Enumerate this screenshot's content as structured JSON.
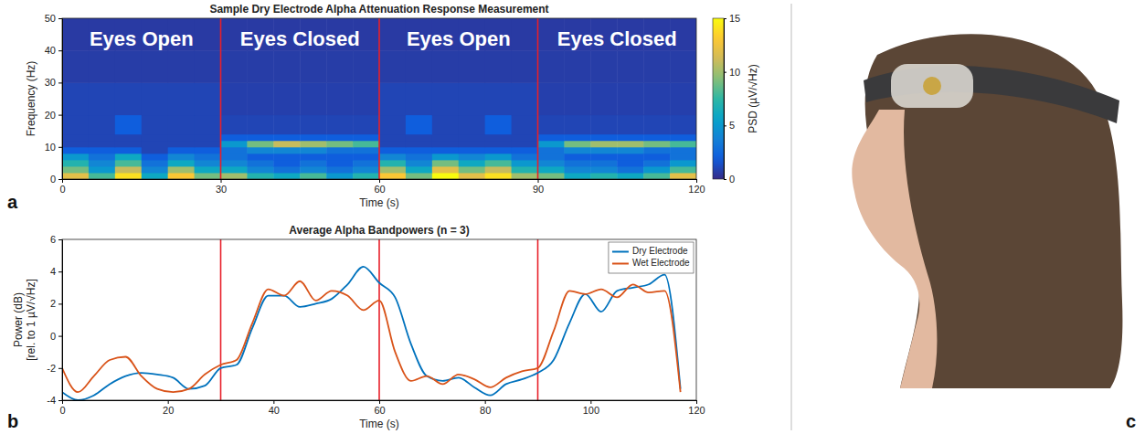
{
  "chart_data": [
    {
      "panel": "a",
      "type": "heatmap",
      "title": "Sample Dry Electrode Alpha Attenuation Response Measurement",
      "xlabel": "Time (s)",
      "ylabel": "Frequency (Hz)",
      "x_bins": [
        0,
        5,
        10,
        15,
        20,
        25,
        30,
        35,
        40,
        45,
        50,
        55,
        60,
        65,
        70,
        75,
        80,
        85,
        90,
        95,
        100,
        105,
        110,
        115,
        120
      ],
      "y_bins": [
        0,
        2,
        4,
        6,
        8,
        10,
        12,
        14,
        20,
        30,
        40,
        50
      ],
      "z": [
        [
          12,
          8,
          14,
          6,
          13,
          9,
          10,
          7,
          6,
          8,
          5,
          7,
          13,
          9,
          15,
          12,
          14,
          10,
          9,
          6,
          7,
          6,
          8,
          12
        ],
        [
          9,
          5,
          11,
          4,
          10,
          6,
          6,
          4,
          3,
          4,
          3,
          4,
          10,
          6,
          12,
          9,
          11,
          7,
          6,
          4,
          4,
          3,
          5,
          8
        ],
        [
          7,
          4,
          8,
          3,
          6,
          4,
          4,
          3,
          2,
          3,
          2,
          3,
          7,
          4,
          9,
          6,
          8,
          5,
          4,
          3,
          3,
          2,
          3,
          5
        ],
        [
          5,
          3,
          6,
          2,
          4,
          3,
          3,
          2,
          2,
          2,
          2,
          2,
          4,
          3,
          5,
          4,
          5,
          3,
          3,
          2,
          2,
          2,
          2,
          3
        ],
        [
          2,
          2,
          2,
          1,
          2,
          2,
          3,
          4,
          4,
          4,
          3,
          3,
          2,
          2,
          2,
          2,
          2,
          2,
          3,
          4,
          4,
          4,
          3,
          3
        ],
        [
          1,
          1,
          1,
          1,
          1,
          1,
          5,
          9,
          11,
          10,
          9,
          8,
          1,
          1,
          1,
          1,
          1,
          1,
          5,
          9,
          10,
          10,
          9,
          8
        ],
        [
          1,
          1,
          1,
          1,
          1,
          1,
          2,
          2,
          2,
          2,
          2,
          2,
          1,
          1,
          1,
          1,
          1,
          1,
          2,
          2,
          2,
          2,
          2,
          2
        ],
        [
          1,
          1,
          2,
          1,
          1,
          1,
          1,
          1,
          1,
          1,
          1,
          1,
          1,
          2,
          1,
          1,
          2,
          1,
          1,
          1,
          1,
          1,
          1,
          1
        ],
        [
          1,
          1,
          1,
          1,
          1,
          1,
          0.8,
          0.8,
          0.8,
          0.8,
          0.8,
          0.8,
          1,
          1,
          1,
          1,
          1,
          1,
          0.8,
          0.8,
          0.8,
          0.8,
          0.8,
          0.8
        ],
        [
          0.7,
          0.7,
          0.7,
          0.7,
          0.7,
          0.7,
          0.7,
          0.7,
          0.7,
          0.7,
          0.7,
          0.7,
          0.7,
          0.7,
          0.7,
          0.7,
          0.7,
          0.7,
          0.7,
          0.7,
          0.7,
          0.7,
          0.7,
          0.7
        ],
        [
          0.6,
          0.6,
          0.6,
          0.6,
          0.6,
          0.6,
          0.6,
          0.6,
          0.6,
          0.6,
          0.6,
          0.6,
          0.6,
          0.6,
          0.6,
          0.6,
          0.6,
          0.6,
          0.6,
          0.6,
          0.6,
          0.6,
          0.6,
          0.6
        ]
      ],
      "xlim": [
        0,
        120
      ],
      "xticks": [
        0,
        30,
        60,
        90,
        120
      ],
      "ylim": [
        0,
        50
      ],
      "yticks": [
        0,
        10,
        20,
        30,
        40,
        50
      ],
      "colorbar": {
        "label": "PSD (µV/√Hz)",
        "range": [
          0,
          15
        ],
        "ticks": [
          0,
          5,
          10,
          15
        ]
      },
      "vlines": {
        "values": [
          30,
          60,
          90
        ],
        "color": "#e8202a"
      },
      "annotations": [
        {
          "text": "Eyes Open",
          "x": 15,
          "y": 43
        },
        {
          "text": "Eyes Closed",
          "x": 45,
          "y": 43
        },
        {
          "text": "Eyes Open",
          "x": 75,
          "y": 43
        },
        {
          "text": "Eyes Closed",
          "x": 105,
          "y": 43
        }
      ]
    },
    {
      "panel": "b",
      "type": "line",
      "title": "Average Alpha Bandpowers (n = 3)",
      "xlabel": "Time (s)",
      "ylabel": [
        "Power (dB)",
        "[rel. to 1 µV/√Hz]"
      ],
      "x": [
        0,
        3,
        6,
        9,
        12,
        15,
        18,
        21,
        24,
        27,
        30,
        33,
        36,
        39,
        42,
        45,
        48,
        51,
        54,
        57,
        60,
        63,
        66,
        69,
        72,
        75,
        78,
        81,
        84,
        87,
        90,
        93,
        96,
        99,
        102,
        105,
        108,
        111,
        114,
        117
      ],
      "series": [
        {
          "name": "Dry Electrode",
          "color": "#0072bd",
          "values": [
            -3.5,
            -4,
            -3.7,
            -3,
            -2.5,
            -2.3,
            -2.4,
            -2.6,
            -3.3,
            -3.1,
            -2,
            -1.8,
            0.5,
            2.5,
            2.5,
            1.8,
            2.0,
            2.3,
            3.2,
            4.3,
            3.3,
            2.4,
            -0.5,
            -2.5,
            -2.8,
            -2.6,
            -3.2,
            -3.7,
            -3.0,
            -2.7,
            -2.3,
            -1.5,
            0.8,
            2.6,
            1.5,
            2.8,
            3.0,
            3.2,
            3.8,
            -3.3
          ]
        },
        {
          "name": "Wet Electrode",
          "color": "#d95319",
          "values": [
            -2,
            -3.5,
            -2.5,
            -1.5,
            -1.3,
            -2.5,
            -3.3,
            -3.5,
            -3.3,
            -2.4,
            -1.8,
            -1.5,
            0.8,
            2.9,
            2.5,
            3.4,
            2.2,
            2.8,
            2.5,
            1.6,
            2.2,
            -1.0,
            -2.8,
            -2.5,
            -3.0,
            -2.4,
            -2.7,
            -3.2,
            -2.6,
            -2.2,
            -2.0,
            0.3,
            2.8,
            2.6,
            2.9,
            2.4,
            3.2,
            2.7,
            2.8,
            -3.5
          ]
        }
      ],
      "xlim": [
        0,
        120
      ],
      "xticks": [
        0,
        20,
        40,
        60,
        80,
        100,
        120
      ],
      "ylim": [
        -4,
        6
      ],
      "yticks": [
        -4,
        -2,
        0,
        2,
        4,
        6
      ],
      "vlines": {
        "values": [
          30,
          60,
          90
        ],
        "color": "#e8202a"
      },
      "legend": "upper right"
    },
    {
      "panel": "c",
      "type": "image"
    }
  ]
}
